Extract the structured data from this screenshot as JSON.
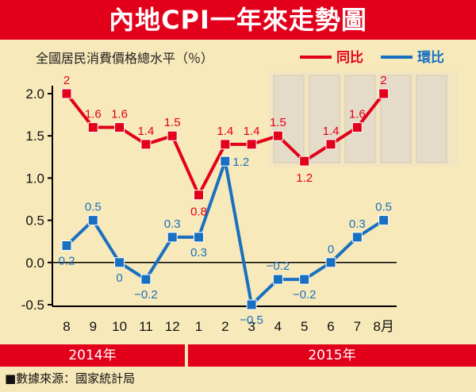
{
  "title": "內地CPI一年來走勢圖",
  "source": "■數據來源：國家統計局",
  "colors": {
    "yoy": "#e2001a",
    "mom": "#1a70c0",
    "background": "#f7e9b9",
    "title_bg": "#e2001a"
  },
  "chart_data": {
    "type": "line",
    "title": "內地CPI一年來走勢圖",
    "ylabel": "全國居民消費價格總水平（％）",
    "xlabel": "",
    "categories": [
      "8",
      "9",
      "10",
      "11",
      "12",
      "1",
      "2",
      "3",
      "4",
      "5",
      "6",
      "7",
      "8月"
    ],
    "year_labels": [
      "2014年",
      "2015年"
    ],
    "yticks": [
      "2.0",
      "1.5",
      "1.0",
      "0.5",
      "0.0",
      "-0.5"
    ],
    "ylim": [
      -0.5,
      2.0
    ],
    "grid": false,
    "legend_position": "top-right",
    "series": [
      {
        "name": "同比",
        "color": "#e2001a",
        "values": [
          2,
          1.6,
          1.6,
          1.4,
          1.5,
          0.8,
          1.4,
          1.4,
          1.5,
          1.2,
          1.4,
          1.6,
          2
        ],
        "labels": [
          "2",
          "1.6",
          "1.6",
          "1.4",
          "1.5",
          "0.8",
          "1.4",
          "1.4",
          "1.5",
          "1.2",
          "1.4",
          "1.6",
          "2"
        ]
      },
      {
        "name": "環比",
        "color": "#1a70c0",
        "values": [
          0.2,
          0.5,
          0,
          -0.2,
          0.3,
          0.3,
          1.2,
          -0.5,
          -0.2,
          -0.2,
          0,
          0.3,
          0.5
        ],
        "labels": [
          "0.2",
          "0.5",
          "0",
          "−0.2",
          "0.3",
          "0.3",
          "1.2",
          "−0.5",
          "−0.2",
          "−0.2",
          "0",
          "0.3",
          "0.5"
        ]
      }
    ]
  }
}
